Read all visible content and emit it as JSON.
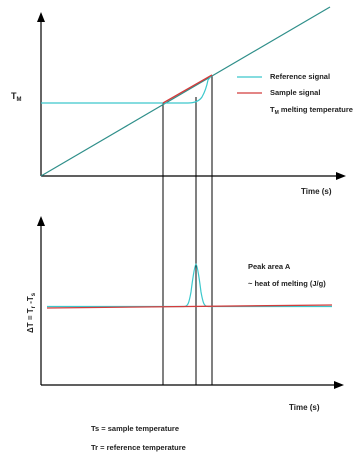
{
  "colors": {
    "reference": "#3cc8cc",
    "sample": "#d23c3c",
    "program": "#2f8f8a",
    "axis": "#000000",
    "text": "#222222"
  },
  "top_plot": {
    "y_symbol": "T",
    "y_symbol_sub": "M",
    "x_label": "Time (s)",
    "legend": [
      {
        "series": "reference",
        "label": "Reference signal"
      },
      {
        "series": "sample",
        "label": "Sample signal"
      }
    ],
    "note": {
      "symbol": "T",
      "sub": "M",
      "text": " melting temperature"
    }
  },
  "bottom_plot": {
    "y_label": {
      "a": "ΔT = T",
      "sub_r": "r",
      "b": " -T",
      "sub_s": "s"
    },
    "x_label": "Time (s)",
    "annotation_title": "Peak area A",
    "annotation_text": "~ heat of melting (J/g)"
  },
  "footnotes": [
    "Ts = sample temperature",
    "Tr = reference temperature"
  ]
}
